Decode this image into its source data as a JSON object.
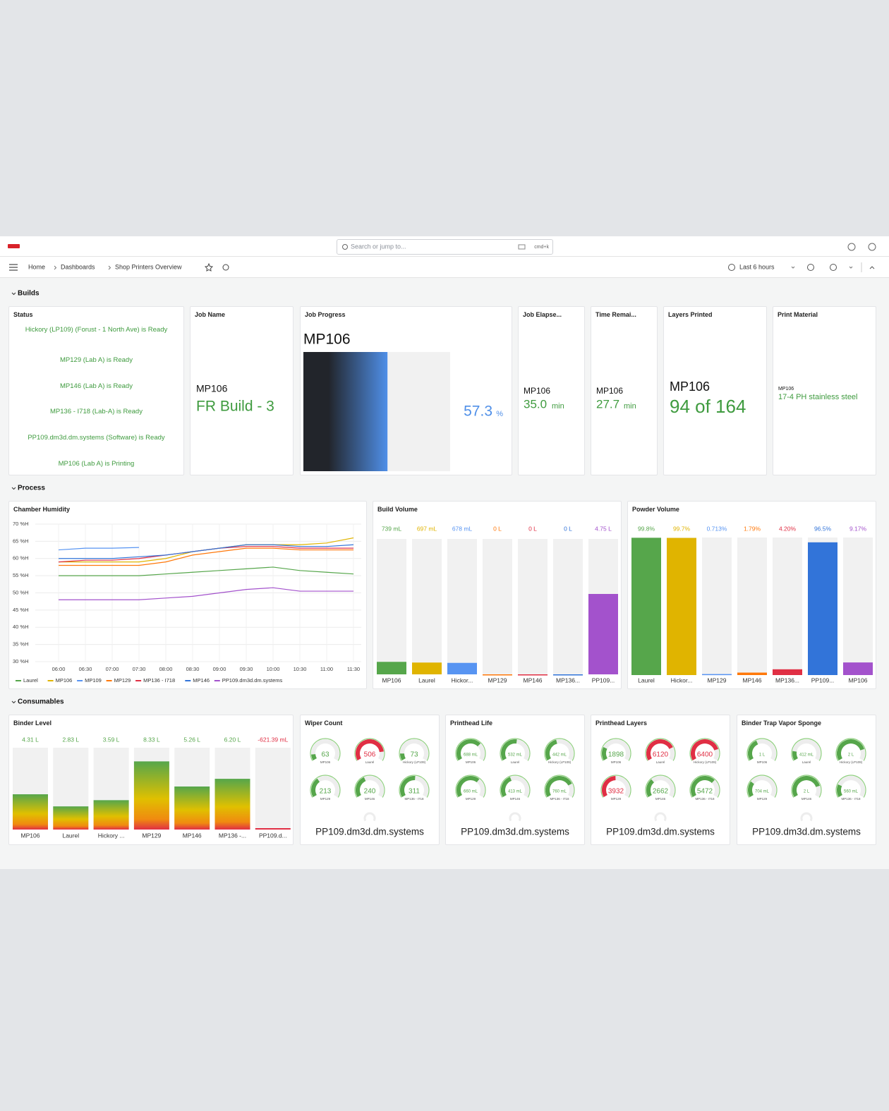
{
  "header": {
    "search_placeholder": "Search or jump to...",
    "shortcut": "cmd+k",
    "breadcrumb": [
      "Home",
      "Dashboards",
      "Shop Printers Overview"
    ],
    "time_range": "Last 6 hours"
  },
  "sections": [
    "Builds",
    "Process",
    "Consumables"
  ],
  "builds": {
    "status": {
      "title": "Status",
      "items": [
        "Hickory (LP109) (Forust - 1 North Ave) is Ready",
        "MP129 (Lab A) is Ready",
        "MP146 (Lab A) is Ready",
        "MP136 - I718 (Lab-A) is Ready",
        "PP109.dm3d.dm.systems (Software) is Ready",
        "MP106 (Lab A) is Printing"
      ]
    },
    "job_name": {
      "title": "Job Name",
      "printer": "MP106",
      "value": "FR Build - 3"
    },
    "job_progress": {
      "title": "Job Progress",
      "printer": "MP106",
      "value": 57.3,
      "unit": "%",
      "xlim": [
        0,
        100
      ]
    },
    "job_elapsed": {
      "title": "Job Elapse...",
      "printer": "MP106",
      "value": "35.0",
      "unit": "min"
    },
    "time_remaining": {
      "title": "Time Remai...",
      "printer": "MP106",
      "value": "27.7",
      "unit": "min"
    },
    "layers_printed": {
      "title": "Layers Printed",
      "printer": "MP106",
      "value": "94 of 164"
    },
    "print_material": {
      "title": "Print Material",
      "printer": "MP106",
      "value": "17-4 PH stainless steel"
    }
  },
  "chart_data": [
    {
      "type": "line",
      "title": "Chamber Humidity",
      "x": [
        "06:00",
        "06:30",
        "07:00",
        "07:30",
        "08:00",
        "08:30",
        "09:00",
        "09:30",
        "10:00",
        "10:30",
        "11:00",
        "11:30"
      ],
      "ylim": [
        30,
        70
      ],
      "yticks": [
        {
          "value": 70,
          "label": "70 %H"
        },
        {
          "value": 65,
          "label": "65 %H"
        },
        {
          "value": 60,
          "label": "60 %H"
        },
        {
          "value": 55,
          "label": "55 %H"
        },
        {
          "value": 50,
          "label": "50 %H"
        },
        {
          "value": 45,
          "label": "45 %H"
        },
        {
          "value": 40,
          "label": "40 %H"
        },
        {
          "value": 35,
          "label": "35 %H"
        },
        {
          "value": 30,
          "label": "30 %H"
        }
      ],
      "grid": true,
      "legend": "bottom",
      "series": [
        {
          "name": "Laurel",
          "color": "#56a64b",
          "values": [
            55,
            55,
            55,
            55,
            55.5,
            56,
            56.5,
            57,
            57.5,
            56.5,
            56,
            55.5
          ]
        },
        {
          "name": "MP106",
          "color": "#e0b400",
          "values": [
            59,
            59,
            59,
            59,
            60,
            62,
            63,
            64,
            64,
            64,
            64.5,
            66
          ]
        },
        {
          "name": "MP109",
          "color": "#5794f2",
          "values": [
            62.5,
            63,
            63,
            63.2,
            null,
            null,
            null,
            null,
            null,
            null,
            null,
            null
          ]
        },
        {
          "name": "MP129",
          "color": "#ff780a",
          "values": [
            58,
            58,
            58,
            58,
            59,
            61,
            62,
            63,
            63,
            62.5,
            62.5,
            62.5
          ]
        },
        {
          "name": "MP136 - I718",
          "color": "#e02f44",
          "values": [
            59,
            59.5,
            59.5,
            60,
            61,
            62,
            63,
            63.5,
            63.5,
            63,
            63,
            63
          ]
        },
        {
          "name": "MP146",
          "color": "#3274d9",
          "values": [
            60,
            60,
            60,
            60.5,
            61,
            62,
            63,
            64,
            64,
            63.5,
            63.5,
            64
          ]
        },
        {
          "name": "PP109.dm3d.dm.systems",
          "color": "#a352cc",
          "values": [
            48,
            48,
            48,
            48,
            48.5,
            49,
            50,
            51,
            51.5,
            50.5,
            50.5,
            50.5
          ]
        }
      ]
    },
    {
      "type": "bar_gauge",
      "title": "Build Volume",
      "categories": [
        "MP106",
        "Laurel",
        "Hickor...",
        "MP129",
        "MP146",
        "MP136...",
        "PP109..."
      ],
      "values": [
        739,
        697,
        678,
        0,
        0,
        0,
        4750
      ],
      "value_labels": [
        "739 mL",
        "697 mL",
        "678 mL",
        "0 L",
        "0 L",
        "0 L",
        "4.75 L"
      ],
      "colors": [
        "#56a64b",
        "#e0b400",
        "#5794f2",
        "#ff780a",
        "#e02f44",
        "#3274d9",
        "#a352cc"
      ],
      "ylim": [
        0,
        8000
      ]
    },
    {
      "type": "bar_gauge",
      "title": "Powder Volume",
      "categories": [
        "Laurel",
        "Hickor...",
        "MP129",
        "MP146",
        "MP136...",
        "PP109...",
        "MP106"
      ],
      "values": [
        99.8,
        99.7,
        0.713,
        1.79,
        4.2,
        96.5,
        9.17
      ],
      "value_labels": [
        "99.8%",
        "99.7%",
        "0.713%",
        "1.79%",
        "4.20%",
        "96.5%",
        "9.17%"
      ],
      "colors": [
        "#56a64b",
        "#e0b400",
        "#5794f2",
        "#ff780a",
        "#e02f44",
        "#3274d9",
        "#a352cc"
      ],
      "ylim": [
        0,
        100
      ]
    },
    {
      "type": "gradient_gauge",
      "title": "Binder Level",
      "categories": [
        "MP106",
        "Laurel",
        "Hickory ...",
        "MP129",
        "MP146",
        "MP136 -...",
        "PP109.d..."
      ],
      "values": [
        4.31,
        2.83,
        3.59,
        8.33,
        5.26,
        6.2,
        -0.62139
      ],
      "value_labels": [
        "4.31 L",
        "2.83 L",
        "3.59 L",
        "8.33 L",
        "5.26 L",
        "6.20 L",
        "-621.39 mL"
      ],
      "colors": [
        "#56a64b",
        "#56a64b",
        "#56a64b",
        "#56a64b",
        "#56a64b",
        "#56a64b",
        "#e02f44"
      ],
      "ylim": [
        0,
        10
      ]
    },
    {
      "type": "gauge",
      "title": "Wiper Count",
      "subtitle": "PP109.dm3d.dm.systems",
      "categories": [
        "MP106",
        "Laurel",
        "Hickory (LP109)",
        "MP129",
        "MP146",
        "MP136 - I718"
      ],
      "values": [
        63,
        506,
        73,
        213,
        240,
        311
      ],
      "colors": [
        "#56a64b",
        "#e02f44",
        "#56a64b",
        "#56a64b",
        "#56a64b",
        "#56a64b"
      ],
      "ylim": [
        0,
        600
      ]
    },
    {
      "type": "gauge",
      "title": "Printhead Life",
      "subtitle": "PP109.dm3d.dm.systems",
      "categories": [
        "MP106",
        "Laurel",
        "Hickory (LP109)",
        "MP129",
        "MP146",
        "MP136 - I718"
      ],
      "values": [
        688,
        532,
        442,
        660,
        413,
        760
      ],
      "value_labels": [
        "688 mL",
        "532 mL",
        "442 mL",
        "660 mL",
        "413 mL",
        "760 mL"
      ],
      "colors": [
        "#56a64b",
        "#56a64b",
        "#56a64b",
        "#56a64b",
        "#56a64b",
        "#56a64b"
      ],
      "ylim": [
        0,
        1000
      ]
    },
    {
      "type": "gauge",
      "title": "Printhead Layers",
      "subtitle": "PP109.dm3d.dm.systems",
      "categories": [
        "MP106",
        "Laurel",
        "Hickory (LP109)",
        "MP129",
        "MP146",
        "MP136 - I718"
      ],
      "values": [
        1898,
        6120,
        6400,
        3932,
        2662,
        5472
      ],
      "colors": [
        "#56a64b",
        "#e02f44",
        "#e02f44",
        "#e02f44",
        "#56a64b",
        "#56a64b"
      ],
      "ylim": [
        0,
        8000
      ]
    },
    {
      "type": "gauge",
      "title": "Binder Trap Vapor Sponge",
      "subtitle": "PP109.dm3d.dm.systems",
      "categories": [
        "MP106",
        "Laurel",
        "Hickory (LP109)",
        "MP129",
        "MP146",
        "MP136 - I718"
      ],
      "values": [
        1000,
        412,
        2000,
        704,
        2000,
        560
      ],
      "value_labels": [
        "1 L",
        "412 mL",
        "2 L",
        "704 mL",
        "2 L",
        "560 mL"
      ],
      "colors": [
        "#56a64b",
        "#56a64b",
        "#56a64b",
        "#56a64b",
        "#56a64b",
        "#56a64b"
      ],
      "ylim": [
        0,
        2500
      ]
    }
  ]
}
